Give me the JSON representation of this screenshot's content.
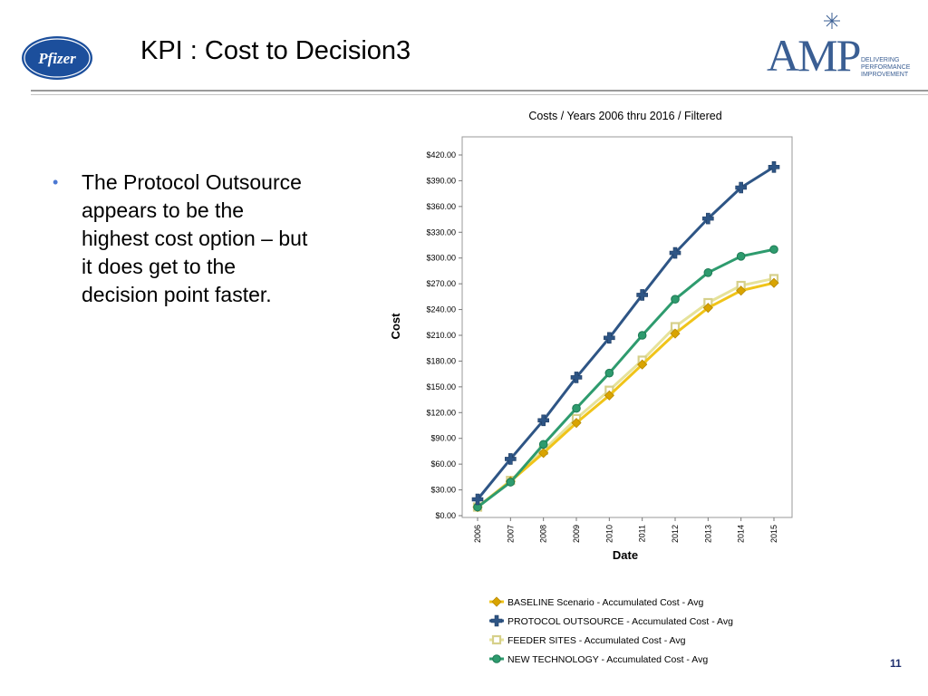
{
  "slide": {
    "title": "KPI : Cost to Decision3",
    "bullet_text": "The Protocol Outsource appears to be the highest cost option – but it does get to the decision point faster.",
    "page_number": "11"
  },
  "logos": {
    "left_brand": "Pfizer",
    "right_brand": "AMP",
    "right_tagline": [
      "DELIVERING",
      "PERFORMANCE",
      "IMPROVEMENT"
    ],
    "colors": {
      "pfizer_blue": "#1c4f9c",
      "amp_blue": "#3a5e93"
    }
  },
  "chart_data": {
    "type": "line",
    "title": "Costs / Years 2006 thru 2016 / Filtered",
    "xlabel": "Date",
    "ylabel": "Cost",
    "x": [
      "2006",
      "2007",
      "2008",
      "2009",
      "2010",
      "2011",
      "2012",
      "2013",
      "2014",
      "2015"
    ],
    "ylim": [
      0,
      420
    ],
    "y_ticks": [
      0,
      30,
      60,
      90,
      120,
      150,
      180,
      210,
      240,
      270,
      300,
      330,
      360,
      390,
      420
    ],
    "y_tick_labels": [
      "$0.00",
      "$30.00",
      "$60.00",
      "$90.00",
      "$120.00",
      "$150.00",
      "$180.00",
      "$210.00",
      "$240.00",
      "$270.00",
      "$300.00",
      "$330.00",
      "$360.00",
      "$390.00",
      "$420.00"
    ],
    "grid": false,
    "legend_position": "bottom",
    "series": [
      {
        "name": "BASELINE Scenario - Accumulated Cost - Avg",
        "color": "#f0c419",
        "marker": "diamond",
        "values": [
          10,
          40,
          73,
          108,
          140,
          176,
          212,
          242,
          262,
          271
        ]
      },
      {
        "name": "PROTOCOL OUTSOURCE - Accumulated Cost - Avg",
        "color": "#2e5585",
        "marker": "plus",
        "values": [
          19,
          66,
          111,
          161,
          207,
          257,
          306,
          346,
          382,
          406
        ]
      },
      {
        "name": "FEEDER SITES - Accumulated Cost - Avg",
        "color": "#e6e29a",
        "marker": "square",
        "values": [
          10,
          41,
          76,
          113,
          146,
          181,
          220,
          248,
          268,
          276
        ]
      },
      {
        "name": "NEW TECHNOLOGY - Accumulated Cost - Avg",
        "color": "#2e9b6e",
        "marker": "circle",
        "values": [
          10,
          39,
          83,
          125,
          166,
          210,
          252,
          283,
          302,
          310
        ]
      }
    ]
  }
}
